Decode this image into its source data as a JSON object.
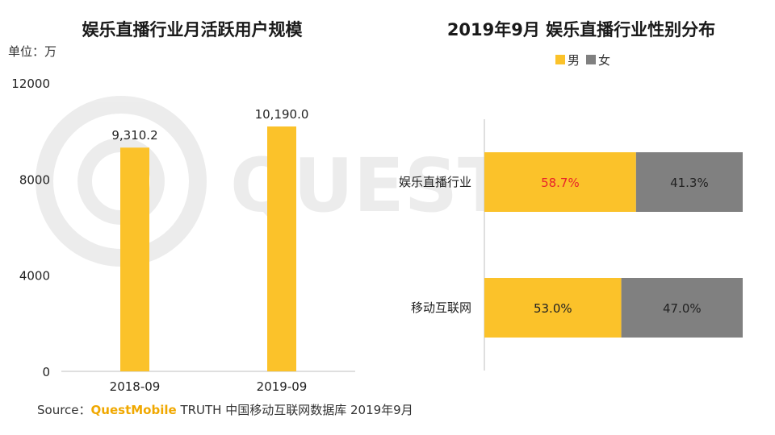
{
  "unit_label": "单位：万",
  "source": {
    "prefix": "Source：",
    "brand": "QuestMobile",
    "suffix": " TRUTH 中国移动互联网数据库 2019年9月"
  },
  "watermark": "QUEST",
  "colors": {
    "male": "#FBC22A",
    "female": "#808080",
    "bar": "#FBC22A",
    "highlight": "#E8242A"
  },
  "chart_data": [
    {
      "type": "bar",
      "title": "娱乐直播行业月活跃用户规模",
      "categories": [
        "2018-09",
        "2019-09"
      ],
      "values": [
        9310.2,
        10190.0
      ],
      "value_labels": [
        "9,310.2",
        "10,190.0"
      ],
      "ylim": [
        0,
        12000
      ],
      "yticks": [
        0,
        4000,
        8000,
        12000
      ],
      "grid": false
    },
    {
      "type": "bar",
      "orientation": "horizontal",
      "stacked": true,
      "title": "2019年9月 娱乐直播行业性别分布",
      "categories": [
        "娱乐直播行业",
        "移动互联网"
      ],
      "series": [
        {
          "name": "男",
          "values": [
            58.7,
            53.0
          ],
          "labels": [
            "58.7%",
            "53.0%"
          ]
        },
        {
          "name": "女",
          "values": [
            41.3,
            47.0
          ],
          "labels": [
            "41.3%",
            "47.0%"
          ]
        }
      ],
      "xlim": [
        0,
        100
      ],
      "legend": "top-center"
    }
  ]
}
